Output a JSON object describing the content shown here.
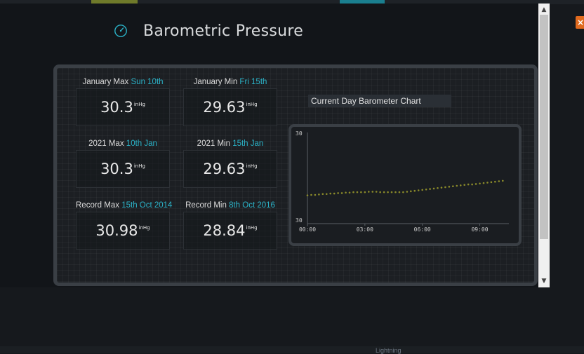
{
  "modal": {
    "title": "Barometric Pressure",
    "close_label": "×"
  },
  "stats": [
    {
      "label": "January Max",
      "date": "Sun 10th",
      "value": "30.3",
      "unit": "inHg"
    },
    {
      "label": "January Min",
      "date": "Fri 15th",
      "value": "29.63",
      "unit": "inHg"
    },
    {
      "label": "2021 Max",
      "date": "10th Jan",
      "value": "30.3",
      "unit": "inHg"
    },
    {
      "label": "2021 Min",
      "date": "15th Jan",
      "value": "29.63",
      "unit": "inHg"
    },
    {
      "label": "Record Max",
      "date": "15th Oct 2014",
      "value": "30.98",
      "unit": "inHg"
    },
    {
      "label": "Record Min",
      "date": "8th Oct 2016",
      "value": "28.84",
      "unit": "inHg"
    }
  ],
  "background": {
    "bottom_label": "Lightning"
  },
  "colors": {
    "accent": "#2bb3c8",
    "close": "#e06a1e",
    "series": "#8a8a2a"
  },
  "chart_data": {
    "type": "scatter",
    "title": "Current Day Barometer Chart",
    "xlabel": "",
    "ylabel": "",
    "x_ticks": [
      "00:00",
      "03:00",
      "06:00",
      "09:00"
    ],
    "y_ticks": [
      "30",
      "30"
    ],
    "y_range": [
      29.9,
      30.1
    ],
    "x_range_hours": [
      0,
      10.3
    ],
    "series": [
      {
        "x": [
          0,
          0.2,
          0.4,
          0.6,
          0.8,
          1.0,
          1.2,
          1.4,
          1.6,
          1.8,
          2.0,
          2.2,
          2.4,
          2.6,
          2.8,
          3.0,
          3.2,
          3.4,
          3.6,
          3.8,
          4.0,
          4.2,
          4.4,
          4.6,
          4.8,
          5.0,
          5.2,
          5.4,
          5.6,
          5.8,
          6.0,
          6.2,
          6.4,
          6.6,
          6.8,
          7.0,
          7.2,
          7.4,
          7.6,
          7.8,
          8.0,
          8.2,
          8.4,
          8.6,
          8.8,
          9.0,
          9.2,
          9.4,
          9.6,
          9.8,
          10.0,
          10.2
        ],
        "y": [
          29.962,
          29.963,
          29.963,
          29.964,
          29.965,
          29.965,
          29.966,
          29.966,
          29.967,
          29.967,
          29.968,
          29.968,
          29.969,
          29.969,
          29.969,
          29.969,
          29.97,
          29.97,
          29.97,
          29.969,
          29.969,
          29.969,
          29.969,
          29.969,
          29.969,
          29.969,
          29.97,
          29.971,
          29.972,
          29.973,
          29.974,
          29.975,
          29.976,
          29.977,
          29.978,
          29.979,
          29.98,
          29.981,
          29.982,
          29.983,
          29.984,
          29.985,
          29.986,
          29.986,
          29.987,
          29.988,
          29.989,
          29.99,
          29.991,
          29.992,
          29.993,
          29.994
        ]
      }
    ],
    "grid": false,
    "legend": "none"
  }
}
